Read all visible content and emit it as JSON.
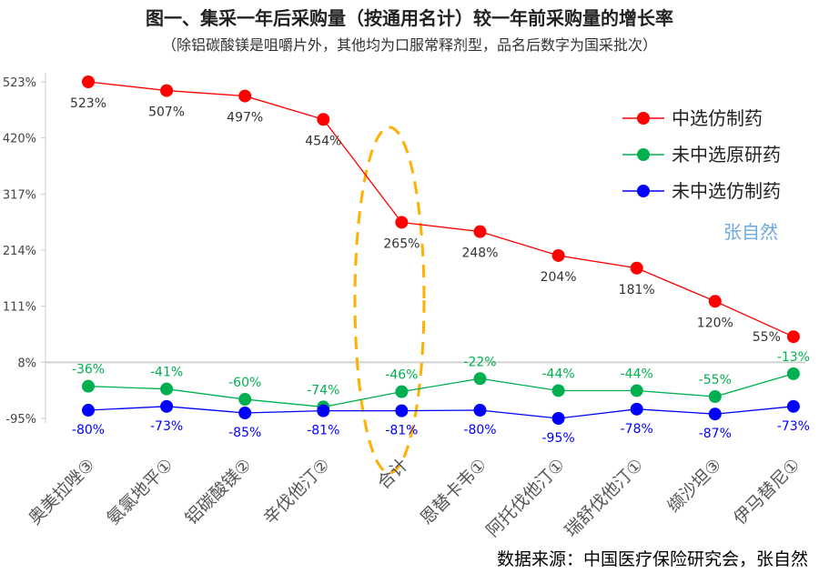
{
  "chart_data": {
    "type": "line",
    "title": "图一、集采一年后采购量（按通用名计）较一年前采购量的增长率",
    "subtitle": "（除铝碳酸镁是咀嚼片外，其他均为口服常释剂型，品名后数字为国采批次）",
    "categories": [
      "奥美拉唑③",
      "氨氯地平①",
      "铝碳酸镁②",
      "辛伐他汀②",
      "合计",
      "恩替卡韦①",
      "阿托伐他汀①",
      "瑞舒伐他汀①",
      "缬沙坦③",
      "伊马替尼①"
    ],
    "series": [
      {
        "name": "中选仿制药",
        "color": "#ff0000",
        "values": [
          523,
          507,
          497,
          454,
          265,
          248,
          204,
          181,
          120,
          55
        ],
        "labels": [
          "523%",
          "507%",
          "497%",
          "454%",
          "265%",
          "248%",
          "204%",
          "181%",
          "120%",
          "55%"
        ]
      },
      {
        "name": "未中选原研药",
        "color": "#00b050",
        "values": [
          -36,
          -41,
          -60,
          -74,
          -46,
          -22,
          -44,
          -44,
          -55,
          -13
        ],
        "labels": [
          "-36%",
          "-41%",
          "-60%",
          "-74%",
          "-46%",
          "-22%",
          "-44%",
          "-44%",
          "-55%",
          "-13%"
        ]
      },
      {
        "name": "未中选仿制药",
        "color": "#0000ff",
        "values": [
          -80,
          -73,
          -85,
          -81,
          -81,
          -80,
          -95,
          -78,
          -87,
          -73
        ],
        "labels": [
          "-80%",
          "-73%",
          "-85%",
          "-81%",
          "-81%",
          "-80%",
          "-95%",
          "-78%",
          "-87%",
          "-73%"
        ]
      }
    ],
    "yticks": [
      "523%",
      "420%",
      "317%",
      "214%",
      "111%",
      "8%",
      "-95%"
    ],
    "ytick_values": [
      523,
      420,
      317,
      214,
      111,
      8,
      -95
    ],
    "ylim": [
      -95,
      523
    ],
    "legend": "right",
    "highlight": "合计",
    "watermark": "张自然"
  },
  "source": "数据来源：中国医疗保险研究会，张自然"
}
